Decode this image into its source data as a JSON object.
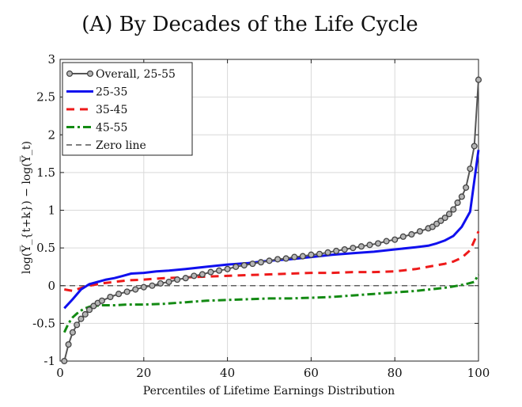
{
  "chart_data": {
    "type": "line",
    "title": "(A) By Decades of the Life Cycle",
    "xlabel": "Percentiles of Lifetime Earnings Distribution",
    "ylabel": "log(Y̅_{t+k}) − log(Y̅_t)",
    "xlim": [
      0,
      100
    ],
    "ylim": [
      -1,
      3
    ],
    "xticks": [
      "0",
      "20",
      "40",
      "60",
      "80",
      "100"
    ],
    "yticks": [
      "-1",
      "-0.5",
      "0",
      "0.5",
      "1",
      "1.5",
      "2",
      "2.5",
      "3"
    ],
    "legend_position": "top-left",
    "grid": true,
    "series": [
      {
        "name": "Overall, 25-55",
        "color": "#555555",
        "style": "line-with-circle-markers",
        "x": [
          1,
          2,
          3,
          4,
          5,
          6,
          7,
          8,
          9,
          10,
          12,
          14,
          16,
          18,
          20,
          22,
          24,
          26,
          28,
          30,
          32,
          34,
          36,
          38,
          40,
          42,
          44,
          46,
          48,
          50,
          52,
          54,
          56,
          58,
          60,
          62,
          64,
          66,
          68,
          70,
          72,
          74,
          76,
          78,
          80,
          82,
          84,
          86,
          88,
          89,
          90,
          91,
          92,
          93,
          94,
          95,
          96,
          97,
          98,
          99,
          100
        ],
        "values": [
          -1.0,
          -0.78,
          -0.62,
          -0.52,
          -0.44,
          -0.38,
          -0.32,
          -0.27,
          -0.23,
          -0.2,
          -0.15,
          -0.11,
          -0.08,
          -0.05,
          -0.02,
          0.0,
          0.03,
          0.05,
          0.08,
          0.1,
          0.13,
          0.15,
          0.18,
          0.2,
          0.22,
          0.25,
          0.27,
          0.29,
          0.31,
          0.33,
          0.35,
          0.36,
          0.38,
          0.39,
          0.41,
          0.42,
          0.44,
          0.46,
          0.48,
          0.5,
          0.52,
          0.54,
          0.56,
          0.59,
          0.61,
          0.65,
          0.68,
          0.72,
          0.76,
          0.78,
          0.82,
          0.86,
          0.9,
          0.95,
          1.01,
          1.1,
          1.18,
          1.3,
          1.55,
          1.85,
          2.73
        ]
      },
      {
        "name": "25-35",
        "color": "#1010ee",
        "style": "solid",
        "x": [
          1,
          3,
          5,
          7,
          9,
          11,
          13,
          15,
          17,
          20,
          23,
          26,
          30,
          35,
          40,
          45,
          50,
          55,
          60,
          65,
          70,
          75,
          80,
          85,
          88,
          90,
          92,
          94,
          96,
          98,
          100
        ],
        "values": [
          -0.3,
          -0.18,
          -0.05,
          0.02,
          0.05,
          0.08,
          0.1,
          0.13,
          0.16,
          0.17,
          0.19,
          0.2,
          0.22,
          0.25,
          0.28,
          0.3,
          0.33,
          0.35,
          0.38,
          0.41,
          0.43,
          0.45,
          0.48,
          0.51,
          0.53,
          0.56,
          0.6,
          0.66,
          0.78,
          0.98,
          1.8
        ]
      },
      {
        "name": "35-45",
        "color": "#ee1a1a",
        "style": "dashed",
        "x": [
          1,
          3,
          5,
          7,
          10,
          13,
          16,
          20,
          25,
          30,
          35,
          40,
          45,
          50,
          55,
          60,
          65,
          70,
          75,
          80,
          85,
          88,
          90,
          92,
          94,
          96,
          98,
          100
        ],
        "values": [
          -0.05,
          -0.07,
          -0.03,
          0.0,
          0.03,
          0.05,
          0.07,
          0.08,
          0.1,
          0.11,
          0.12,
          0.13,
          0.14,
          0.15,
          0.16,
          0.17,
          0.17,
          0.18,
          0.18,
          0.19,
          0.22,
          0.25,
          0.27,
          0.29,
          0.32,
          0.37,
          0.47,
          0.72
        ]
      },
      {
        "name": "45-55",
        "color": "#138a13",
        "style": "dash-dot",
        "x": [
          1,
          2,
          3,
          4,
          5,
          6,
          7,
          8,
          10,
          13,
          16,
          20,
          25,
          30,
          35,
          40,
          45,
          50,
          55,
          60,
          65,
          70,
          75,
          80,
          85,
          90,
          93,
          95,
          97,
          99,
          100
        ],
        "values": [
          -0.62,
          -0.5,
          -0.42,
          -0.37,
          -0.33,
          -0.3,
          -0.28,
          -0.27,
          -0.26,
          -0.26,
          -0.25,
          -0.25,
          -0.24,
          -0.22,
          -0.2,
          -0.19,
          -0.18,
          -0.17,
          -0.17,
          -0.16,
          -0.15,
          -0.13,
          -0.11,
          -0.09,
          -0.07,
          -0.04,
          -0.02,
          0.0,
          0.02,
          0.05,
          0.15
        ]
      },
      {
        "name": "Zero line",
        "color": "#333333",
        "style": "dashed-thin",
        "x": [
          0,
          100
        ],
        "values": [
          0,
          0
        ]
      }
    ]
  }
}
